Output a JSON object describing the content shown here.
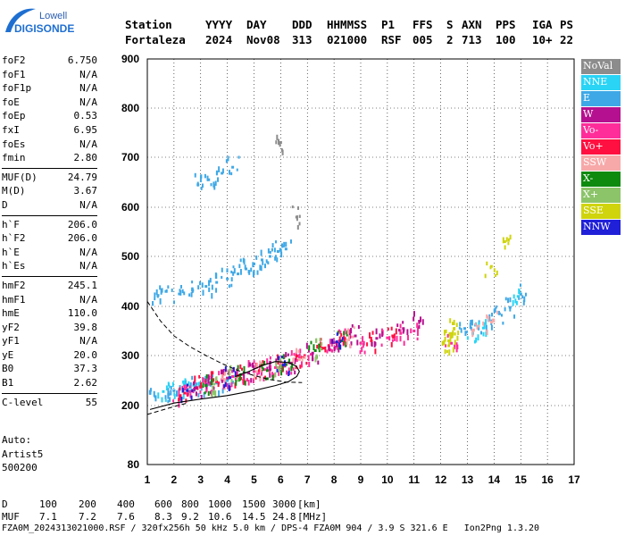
{
  "logo": {
    "line1": "Lowell",
    "line2": "DIGISONDE"
  },
  "header": {
    "row1": [
      "Station",
      "YYYY",
      "DAY",
      "DDD",
      "HHMMSS",
      "P1",
      "FFS",
      "S",
      "AXN",
      "PPS",
      "IGA",
      "PS"
    ],
    "row2": [
      "Fortaleza",
      "2024",
      "Nov08",
      "313",
      "021000",
      "RSF",
      "005",
      "2",
      "713",
      "100",
      "10+",
      "22"
    ]
  },
  "params": [
    {
      "group": [
        [
          "foF2",
          "6.750"
        ],
        [
          "foF1",
          "N/A"
        ],
        [
          "foF1p",
          "N/A"
        ],
        [
          "foE",
          "N/A"
        ],
        [
          "foEp",
          "0.53"
        ],
        [
          "fxI",
          "6.95"
        ],
        [
          "foEs",
          "N/A"
        ],
        [
          "fmin",
          "2.80"
        ]
      ]
    },
    {
      "group": [
        [
          "MUF(D)",
          "24.79"
        ],
        [
          "M(D)",
          "3.67"
        ],
        [
          "D",
          "N/A"
        ]
      ]
    },
    {
      "group": [
        [
          "h`F",
          "206.0"
        ],
        [
          "h`F2",
          "206.0"
        ],
        [
          "h`E",
          "N/A"
        ],
        [
          "h`Es",
          "N/A"
        ]
      ]
    },
    {
      "group": [
        [
          "hmF2",
          "245.1"
        ],
        [
          "hmF1",
          "N/A"
        ],
        [
          "hmE",
          "110.0"
        ],
        [
          "yF2",
          "39.8"
        ],
        [
          "yF1",
          "N/A"
        ],
        [
          "yE",
          "20.0"
        ],
        [
          "B0",
          "37.3"
        ],
        [
          "B1",
          "2.62"
        ]
      ]
    },
    {
      "group": [
        [
          "C-level",
          "55"
        ]
      ]
    }
  ],
  "auto": {
    "line1": "Auto:",
    "line2": "Artist5",
    "line3": "500200"
  },
  "legend": [
    {
      "label": "NoVal",
      "color": "#8c8c8c"
    },
    {
      "label": "NNE",
      "color": "#29d4f5"
    },
    {
      "label": "E",
      "color": "#3ea8e6"
    },
    {
      "label": "W",
      "color": "#b5108f"
    },
    {
      "label": "Vo-",
      "color": "#ff2d9a"
    },
    {
      "label": "Vo+",
      "color": "#ff1040"
    },
    {
      "label": "SSW",
      "color": "#f7a9a9"
    },
    {
      "label": "X-",
      "color": "#0e8a0e"
    },
    {
      "label": "X+",
      "color": "#8cc46a"
    },
    {
      "label": "SSE",
      "color": "#cfd40c"
    },
    {
      "label": "NNW",
      "color": "#2020d8"
    }
  ],
  "chart_data": {
    "type": "scatter",
    "xlabel": "",
    "ylabel": "",
    "xlim": [
      1,
      17
    ],
    "ylim": [
      80,
      900
    ],
    "x_ticks": [
      "1",
      "2",
      "3",
      "4",
      "5",
      "6",
      "7",
      "8",
      "9",
      "10",
      "11",
      "12",
      "13",
      "14",
      "15",
      "16",
      "17"
    ],
    "y_ticks": [
      "80",
      "200",
      "300",
      "400",
      "500",
      "600",
      "700",
      "800",
      "900"
    ],
    "y_tick_values": [
      80,
      200,
      300,
      400,
      500,
      600,
      700,
      800,
      900
    ],
    "grid": true,
    "series": [
      {
        "name": "E",
        "color": "#3ea8e6",
        "points": [
          [
            1.4,
            422
          ],
          [
            1.7,
            430
          ],
          [
            2.2,
            425
          ],
          [
            2.7,
            432
          ],
          [
            3.2,
            440
          ],
          [
            3.6,
            448
          ],
          [
            4.0,
            455
          ],
          [
            4.4,
            465
          ],
          [
            4.7,
            475
          ],
          [
            5.0,
            485
          ],
          [
            5.3,
            493
          ],
          [
            5.6,
            500
          ],
          [
            5.9,
            510
          ],
          [
            6.2,
            515
          ],
          [
            2.0,
            230
          ],
          [
            2.4,
            233
          ],
          [
            2.8,
            238
          ],
          [
            3.2,
            242
          ],
          [
            3.6,
            245
          ],
          [
            4.0,
            250
          ],
          [
            1.3,
            218
          ],
          [
            1.8,
            222
          ],
          [
            2.9,
            645
          ],
          [
            3.3,
            655
          ],
          [
            3.8,
            668
          ],
          [
            4.2,
            680
          ],
          [
            12.9,
            355
          ],
          [
            13.3,
            362
          ],
          [
            13.8,
            372
          ],
          [
            14.2,
            385
          ],
          [
            14.6,
            398
          ],
          [
            15.0,
            425
          ]
        ]
      },
      {
        "name": "NNE",
        "color": "#29d4f5",
        "points": [
          [
            1.6,
            228
          ],
          [
            2.2,
            232
          ],
          [
            2.6,
            236
          ],
          [
            3.0,
            240
          ],
          [
            13.2,
            345
          ],
          [
            13.6,
            356
          ],
          [
            14.9,
            420
          ]
        ]
      },
      {
        "name": "Vo-",
        "color": "#ff2d9a",
        "points": [
          [
            2.2,
            220
          ],
          [
            2.6,
            228
          ],
          [
            3.0,
            236
          ],
          [
            3.4,
            244
          ],
          [
            3.8,
            252
          ],
          [
            4.2,
            258
          ],
          [
            4.6,
            262
          ],
          [
            5.0,
            268
          ],
          [
            5.4,
            272
          ],
          [
            5.8,
            276
          ],
          [
            6.2,
            282
          ],
          [
            6.6,
            290
          ],
          [
            6.9,
            300
          ],
          [
            7.8,
            320
          ],
          [
            8.2,
            330
          ],
          [
            8.6,
            338
          ],
          [
            9.0,
            325
          ],
          [
            10.0,
            336
          ],
          [
            10.5,
            345
          ],
          [
            11.0,
            350
          ],
          [
            12.4,
            325
          ]
        ]
      },
      {
        "name": "Vo+",
        "color": "#ff1040",
        "points": [
          [
            2.4,
            225
          ],
          [
            3.0,
            238
          ],
          [
            3.6,
            248
          ],
          [
            4.4,
            260
          ],
          [
            5.2,
            270
          ],
          [
            6.0,
            280
          ],
          [
            6.8,
            296
          ],
          [
            7.6,
            315
          ],
          [
            8.4,
            335
          ],
          [
            9.4,
            330
          ],
          [
            10.2,
            340
          ]
        ]
      },
      {
        "name": "W",
        "color": "#b5108f",
        "points": [
          [
            2.8,
            235
          ],
          [
            3.4,
            245
          ],
          [
            4.0,
            255
          ],
          [
            4.8,
            265
          ],
          [
            5.6,
            272
          ],
          [
            6.4,
            285
          ],
          [
            7.2,
            305
          ],
          [
            8.0,
            326
          ],
          [
            8.8,
            340
          ],
          [
            9.6,
            335
          ],
          [
            10.6,
            355
          ],
          [
            11.2,
            370
          ]
        ]
      },
      {
        "name": "X-",
        "color": "#0e8a0e",
        "points": [
          [
            3.2,
            240
          ],
          [
            4.5,
            262
          ],
          [
            5.5,
            270
          ],
          [
            6.2,
            282
          ],
          [
            7.3,
            310
          ],
          [
            8.3,
            330
          ]
        ]
      },
      {
        "name": "X+",
        "color": "#8cc46a",
        "points": [
          [
            3.5,
            243
          ],
          [
            4.3,
            258
          ],
          [
            5.9,
            276
          ],
          [
            7.5,
            313
          ]
        ]
      },
      {
        "name": "SSW",
        "color": "#f7a9a9",
        "points": [
          [
            3.9,
            252
          ],
          [
            5.1,
            268
          ],
          [
            6.7,
            292
          ],
          [
            8.7,
            338
          ],
          [
            13.4,
            360
          ],
          [
            13.9,
            368
          ]
        ]
      },
      {
        "name": "SSE",
        "color": "#cfd40c",
        "points": [
          [
            12.3,
            330
          ],
          [
            12.4,
            345
          ],
          [
            12.5,
            355
          ],
          [
            12.3,
            320
          ],
          [
            14.4,
            530
          ],
          [
            13.9,
            480
          ]
        ]
      },
      {
        "name": "NNW",
        "color": "#2020d8",
        "points": [
          [
            2.5,
            230
          ],
          [
            4.1,
            256
          ],
          [
            6.1,
            281
          ],
          [
            8.1,
            328
          ]
        ]
      },
      {
        "name": "NoVal",
        "color": "#8c8c8c",
        "points": [
          [
            6.6,
            580
          ],
          [
            6.0,
            730
          ]
        ]
      }
    ],
    "profile_solid": [
      [
        1.1,
        192
      ],
      [
        2.0,
        205
      ],
      [
        3.0,
        213
      ],
      [
        4.0,
        220
      ],
      [
        5.0,
        230
      ],
      [
        5.8,
        240
      ],
      [
        6.3,
        248
      ],
      [
        6.6,
        258
      ],
      [
        6.7,
        268
      ],
      [
        6.6,
        278
      ],
      [
        6.3,
        286
      ],
      [
        5.8,
        288
      ],
      [
        5.3,
        280
      ],
      [
        4.8,
        268
      ],
      [
        4.3,
        258
      ]
    ],
    "profile_dashed": [
      [
        1.0,
        410
      ],
      [
        1.5,
        370
      ],
      [
        2.0,
        340
      ],
      [
        2.6,
        318
      ],
      [
        3.2,
        300
      ],
      [
        3.8,
        284
      ],
      [
        4.4,
        270
      ],
      [
        5.0,
        260
      ],
      [
        5.6,
        252
      ],
      [
        6.2,
        247
      ],
      [
        6.8,
        246
      ]
    ],
    "dashed_lower": [
      [
        1.0,
        182
      ],
      [
        1.5,
        190
      ],
      [
        2.0,
        198
      ],
      [
        2.5,
        205
      ]
    ]
  },
  "distance_row": {
    "label": "D",
    "values": [
      "100",
      "200",
      "400",
      "600",
      "800",
      "1000",
      "1500",
      "3000",
      "[km]"
    ]
  },
  "muf_row": {
    "label": "MUF",
    "values": [
      "7.1",
      "7.2",
      "7.6",
      "8.3",
      "9.2",
      "10.6",
      "14.5",
      "24.8",
      "[MHz]"
    ]
  },
  "footer": "FZA0M_2024313021000.RSF / 320fx256h 50 kHz 5.0 km / DPS-4 FZA0M 904 / 3.9 S 321.6 E   Ion2Png 1.3.20"
}
